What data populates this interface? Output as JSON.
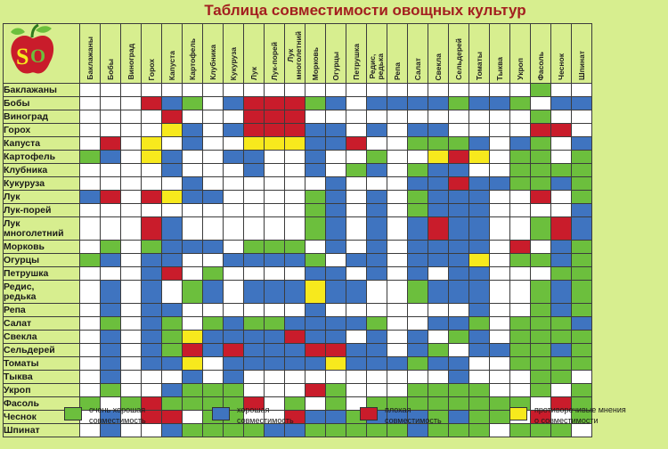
{
  "title": "Таблица совместимости овощных культур",
  "logo_icon": "apple-logo-icon",
  "colors": {
    "background": "#d7ee8f",
    "very_good": "#6cbf3d",
    "good": "#3f74c0",
    "bad": "#c91c2b",
    "controversial": "#f7e91d",
    "empty": "#ffffff",
    "title": "#a31f1f"
  },
  "columns": [
    "Баклажаны",
    "Бобы",
    "Виноград",
    "Горох",
    "Капуста",
    "Картофель",
    "Клубника",
    "Кукуруза",
    "Лук",
    "Лук-порей",
    "Лук\nмноголетний",
    "Морковь",
    "Огурцы",
    "Петрушка",
    "Редис,\nредька",
    "Репа",
    "Салат",
    "Свекла",
    "Сельдерей",
    "Томаты",
    "Тыква",
    "Укроп",
    "Фасоль",
    "Чеснок",
    "Шпинат"
  ],
  "rows": [
    {
      "label": "Баклажаны",
      "cells": "WWWWWWWWWWWWWWWWWWWWWWGWW"
    },
    {
      "label": "Бобы",
      "cells": "WWWRBGWBRRRGBWBBBBGBBGWBB"
    },
    {
      "label": "Виноград",
      "cells": "WWWWRWWWRRRWWWWWWWWWWWGWW"
    },
    {
      "label": "Горох",
      "cells": "WWWWYBWBRRRBBWBWBBWWWWRRW"
    },
    {
      "label": "Капуста",
      "cells": "WRWYWBWWYYYBBRWWGGGBWBGWB"
    },
    {
      "label": "Картофель",
      "cells": "GBWYBWWBBWWBWWGWWYRYWGGWG"
    },
    {
      "label": "Клубника",
      "cells": "WWWWBWWWBWWBWGBWGBBWWGGGG"
    },
    {
      "label": "Кукуруза",
      "cells": "WWWWWBWWWWWWBWWWBBRBBGGBG"
    },
    {
      "label": "Лук",
      "cells": "BRWRYBBWWWWGBWBWGBBBWWRWG"
    },
    {
      "label": "Лук-порей",
      "cells": "WWWWWWWWWWWGBWBWGBBBWWWWB"
    },
    {
      "label": "Лук\nмноголетний",
      "cells": "WWWRBWWWWWWGBWBWBRBBWWGRB"
    },
    {
      "label": "Морковь",
      "cells": "WGWGBBBWGGGWBWBWBBBBWRWBG"
    },
    {
      "label": "Огурцы",
      "cells": "GBWBBWWBBBBGWBBWBBBYWGGBG"
    },
    {
      "label": "Петрушка",
      "cells": "WWWBRWGWWWWBBWBWBWBBWWWGG"
    },
    {
      "label": "Редис,\nредька",
      "cells": "WBWBWGBWBBBYBBWWGBBBWWGBG"
    },
    {
      "label": "Репа",
      "cells": "WBWBBWWWWWWBWWWWWWWBWWGBG"
    },
    {
      "label": "Салат",
      "cells": "WGWBGWGBGGBBBBGWWBBGWGGGB"
    },
    {
      "label": "Свекла",
      "cells": "WBWBGYBBBBRBBWBWBWGBWGGGG"
    },
    {
      "label": "Сельдерей",
      "cells": "WBWBGRBRBBBRRBBWBGWBBGGBG"
    },
    {
      "label": "Томаты",
      "cells": "WBWBBYWBBBBBYBBBGBBWWGGGG"
    },
    {
      "label": "Тыква",
      "cells": "WBWWWBWBWWWWWWWWWWBWWWGGW"
    },
    {
      "label": "Укроп",
      "cells": "WGWWBGGGWWWRGWWWGGGGWWGWG"
    },
    {
      "label": "Фасоль",
      "cells": "GWGRGGGGRWGWGWGGGGGGGGWRG"
    },
    {
      "label": "Чеснок",
      "cells": "WBWRRWGGWWRBBGBBBGBGGWRWG"
    },
    {
      "label": "Шпинат",
      "cells": "WBWWBGGGGBBGGGGGBGGGWGGGW"
    }
  ],
  "legend": [
    {
      "label": "очень хорошая\nсовместимость",
      "key": "very_good"
    },
    {
      "label": "хорошая\nсовместимость",
      "key": "good"
    },
    {
      "label": "плохая\nсовместимость",
      "key": "bad"
    },
    {
      "label": "противоречивые мнения\nо совместимости",
      "key": "controversial"
    }
  ]
}
